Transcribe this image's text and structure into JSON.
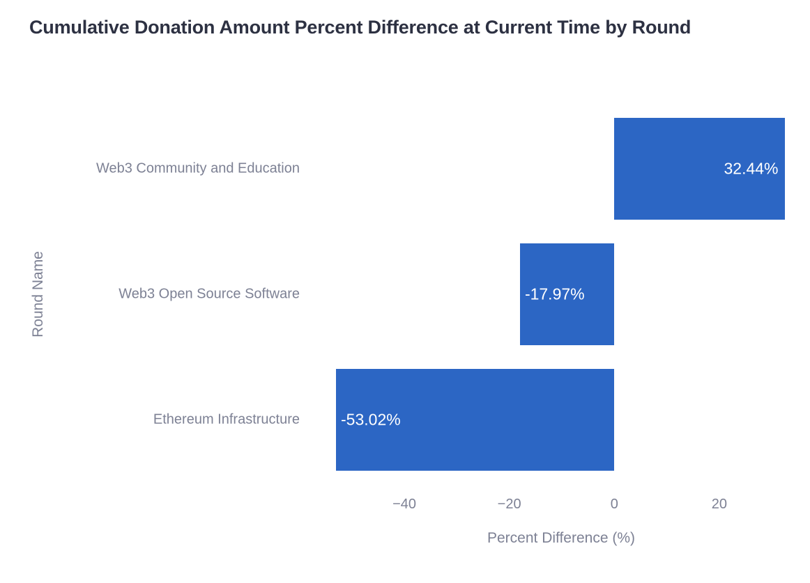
{
  "chart_data": {
    "type": "bar",
    "orientation": "horizontal",
    "title": "Cumulative Donation Amount Percent Difference at Current Time by Round",
    "xlabel": "Percent Difference (%)",
    "ylabel": "Round Name",
    "categories": [
      "Web3 Community and Education",
      "Web3 Open Source Software",
      "Ethereum Infrastructure"
    ],
    "values": [
      32.44,
      -17.97,
      -53.02
    ],
    "bar_labels": [
      "32.44%",
      "-17.97%",
      "-53.02%"
    ],
    "xlim": [
      -58.6,
      33.3
    ],
    "x_ticks": [
      -40,
      -20,
      0,
      20
    ],
    "x_tick_labels": [
      "−40",
      "−20",
      "0",
      "20"
    ],
    "grid": false,
    "legend": false,
    "colors": {
      "bar": "#2c66c4",
      "bar_label_text": "#ffffff",
      "axis_text": "#7d8194",
      "title_text": "#2d3142",
      "background": "#ffffff"
    }
  }
}
